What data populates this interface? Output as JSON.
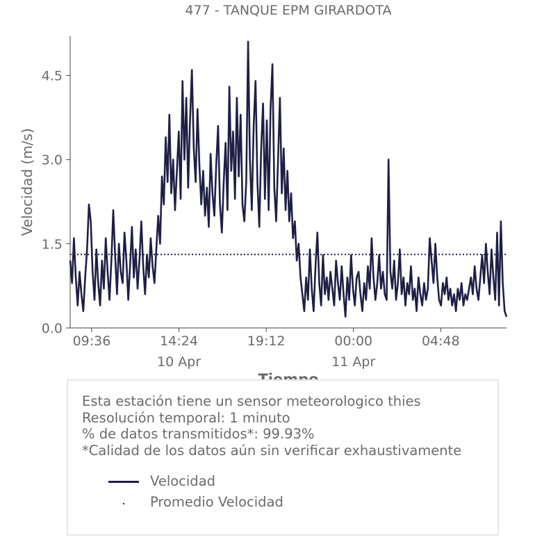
{
  "chart_data": {
    "type": "line",
    "title": "477 - TANQUE EPM GIRARDOTA",
    "xlabel": "Tiempo",
    "ylabel": "Velocidad (m/s)",
    "ylim": [
      0,
      5.2
    ],
    "y_ticks": [
      {
        "value": 0.0,
        "label": "0.0"
      },
      {
        "value": 1.5,
        "label": "1.5"
      },
      {
        "value": 3.0,
        "label": "3.0"
      },
      {
        "value": 4.5,
        "label": "4.5"
      }
    ],
    "x_range_hours": [
      0,
      24
    ],
    "x_ticks": [
      {
        "time": "10 Apr 09:36",
        "label": "09:36",
        "sublabel": ""
      },
      {
        "time": "10 Apr 14:24",
        "label": "14:24",
        "sublabel": "10 Apr"
      },
      {
        "time": "10 Apr 19:12",
        "label": "19:12",
        "sublabel": ""
      },
      {
        "time": "11 Apr 00:00",
        "label": "00:00",
        "sublabel": "11 Apr"
      },
      {
        "time": "11 Apr 04:48",
        "label": "04:48",
        "sublabel": ""
      }
    ],
    "grid": false,
    "series": [
      {
        "name": "Velocidad",
        "style": "solid",
        "color": "#1f1f45",
        "x_start": "10 Apr 08:25",
        "x_end": "11 Apr 08:25",
        "values": [
          1.2,
          0.8,
          1.6,
          0.9,
          0.4,
          1.0,
          0.6,
          0.3,
          0.9,
          1.4,
          2.2,
          1.9,
          1.0,
          0.5,
          1.4,
          0.8,
          0.4,
          1.2,
          0.7,
          1.6,
          1.0,
          0.5,
          1.2,
          2.1,
          1.3,
          0.6,
          1.5,
          1.0,
          0.8,
          1.7,
          1.2,
          0.5,
          1.1,
          1.8,
          0.9,
          1.4,
          0.7,
          1.2,
          1.9,
          1.1,
          0.6,
          1.3,
          0.9,
          1.6,
          1.1,
          0.8,
          1.4,
          2.0,
          1.5,
          2.7,
          2.2,
          3.4,
          2.6,
          3.8,
          2.4,
          3.0,
          2.1,
          2.8,
          3.5,
          2.3,
          4.4,
          3.0,
          4.1,
          2.5,
          3.7,
          4.6,
          3.2,
          2.6,
          3.9,
          2.9,
          2.2,
          2.8,
          2.0,
          2.5,
          1.8,
          3.1,
          2.4,
          2.0,
          2.9,
          3.6,
          2.2,
          1.7,
          2.6,
          3.3,
          2.1,
          4.3,
          2.8,
          3.5,
          2.3,
          4.1,
          2.7,
          3.8,
          2.2,
          1.9,
          2.6,
          5.1,
          3.0,
          2.1,
          3.6,
          4.4,
          2.6,
          1.8,
          3.2,
          4.0,
          2.3,
          3.7,
          2.1,
          3.9,
          4.7,
          2.5,
          1.9,
          3.0,
          4.1,
          2.4,
          3.2,
          2.1,
          2.8,
          1.9,
          2.4,
          1.6,
          1.9,
          1.2,
          1.5,
          0.9,
          0.6,
          0.3,
          0.9,
          0.5,
          1.4,
          0.7,
          0.3,
          1.1,
          1.7,
          0.8,
          0.4,
          1.3,
          0.6,
          0.9,
          0.5,
          1.0,
          0.7,
          0.4,
          1.2,
          0.8,
          0.5,
          1.1,
          0.6,
          0.2,
          0.9,
          0.5,
          1.3,
          0.7,
          0.4,
          0.9,
          1.0,
          0.6,
          0.3,
          0.8,
          0.5,
          1.1,
          0.7,
          1.6,
          0.9,
          0.5,
          0.8,
          1.3,
          0.7,
          1.0,
          0.6,
          0.5,
          3.0,
          1.0,
          0.7,
          1.2,
          0.5,
          0.8,
          1.4,
          0.6,
          0.9,
          0.4,
          0.8,
          0.6,
          1.1,
          0.5,
          0.7,
          0.3,
          0.9,
          0.6,
          0.4,
          0.8,
          0.5,
          0.7,
          1.6,
          1.2,
          0.8,
          1.5,
          0.9,
          0.5,
          0.4,
          0.8,
          0.6,
          0.9,
          0.5,
          0.7,
          0.4,
          0.6,
          0.3,
          0.7,
          0.5,
          0.8,
          0.4,
          0.6,
          0.5,
          0.7,
          0.9,
          0.6,
          1.1,
          0.7,
          0.5,
          0.9,
          1.3,
          0.8,
          1.5,
          1.0,
          0.6,
          1.4,
          0.9,
          0.5,
          1.7,
          0.4,
          1.9,
          0.8,
          0.3,
          0.2
        ]
      },
      {
        "name": "Promedio Velocidad",
        "style": "dotted",
        "color": "#1f1f45",
        "values": [
          1.31
        ]
      }
    ]
  },
  "info": {
    "lines": [
      "Esta estación tiene un sensor meteorologico thies",
      "Resolución temporal: 1 minuto",
      "% de datos transmitidos*: 99.93%",
      "*Calidad de los datos aún sin verificar exhaustivamente"
    ]
  },
  "legend": [
    {
      "label": "Velocidad",
      "marker": "line"
    },
    {
      "label": "Promedio Velocidad",
      "marker": "dot"
    }
  ],
  "colors": {
    "series": "#1f1f45",
    "text": "#6b6b6b",
    "axis": "#444444",
    "box_border": "#e6e6e6"
  }
}
